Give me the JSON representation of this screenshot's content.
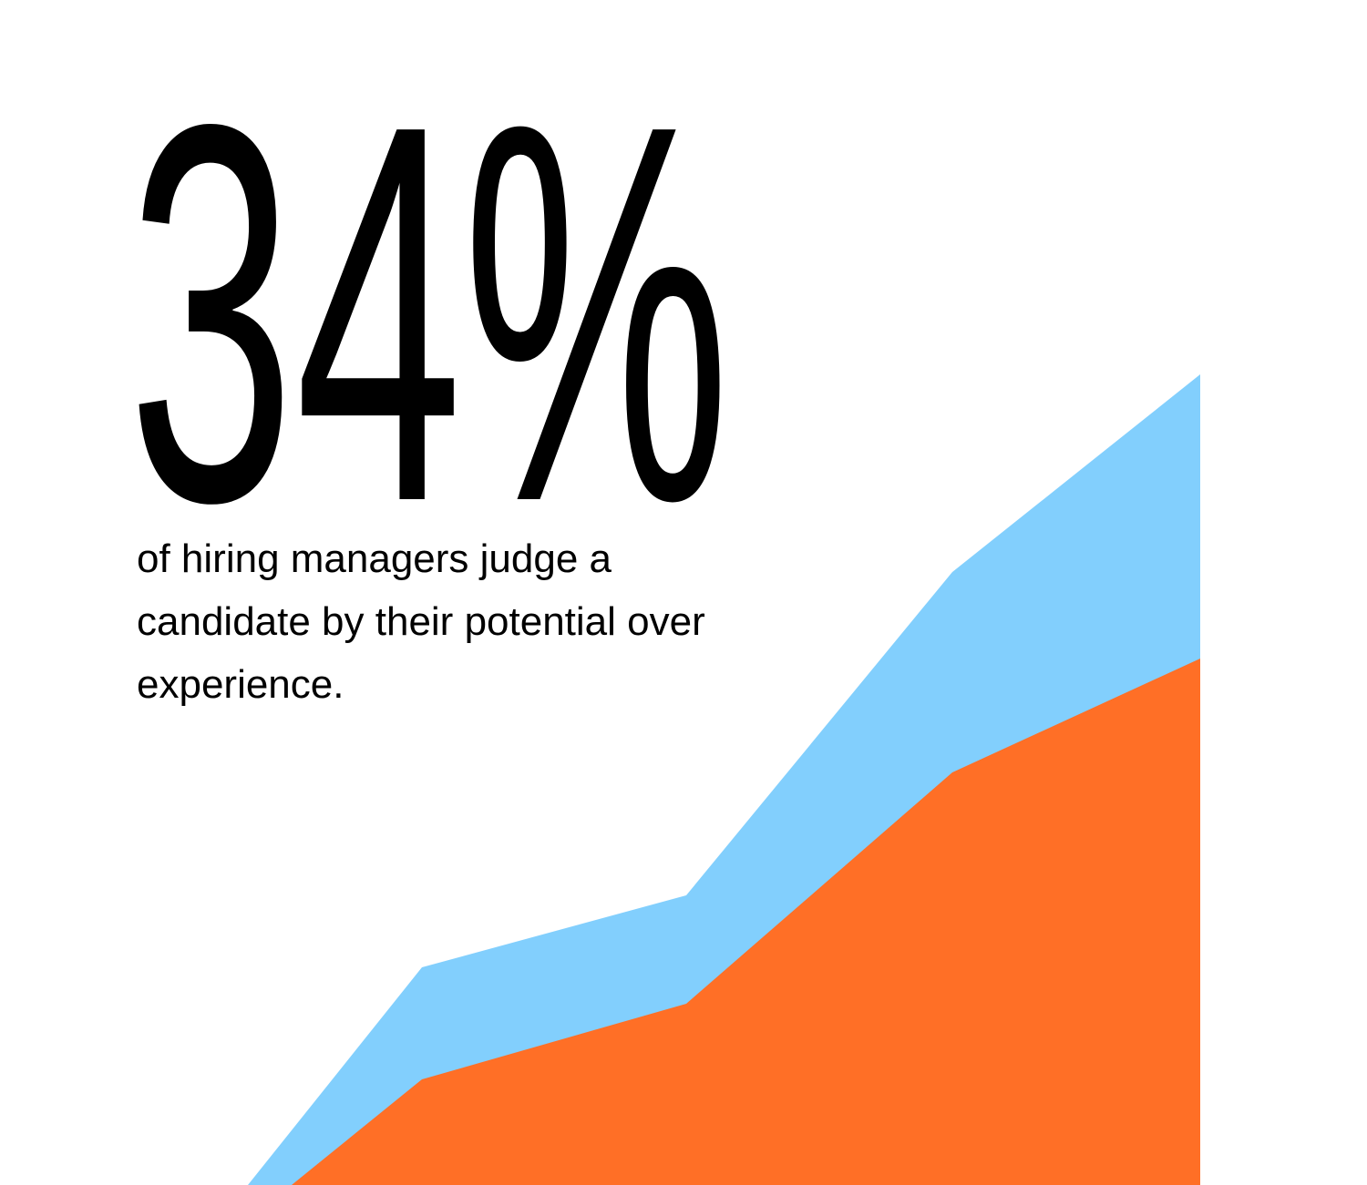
{
  "stat": {
    "value": "34%",
    "caption": [
      "of hiring managers judge a",
      "candidate by their potential over",
      "experience."
    ]
  }
}
